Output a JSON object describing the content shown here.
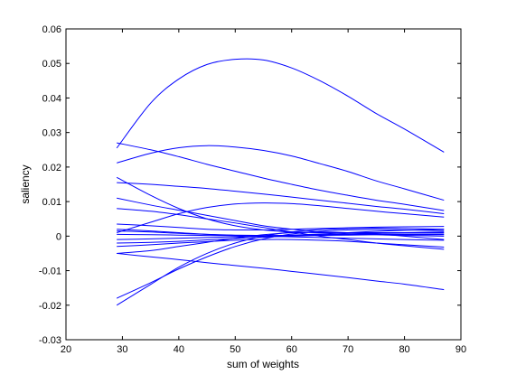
{
  "chart_data": {
    "type": "line",
    "title": "",
    "xlabel": "sum of weights",
    "ylabel": "saliency",
    "xlim": [
      20,
      90
    ],
    "ylim": [
      -0.03,
      0.06
    ],
    "x_ticks": [
      20,
      30,
      40,
      50,
      60,
      70,
      80,
      90
    ],
    "y_ticks": [
      -0.03,
      -0.02,
      -0.01,
      0,
      0.01,
      0.02,
      0.03,
      0.04,
      0.05,
      0.06
    ],
    "y_tick_labels": [
      "-0.03",
      "-0.02",
      "-0.01",
      "0",
      "0.01",
      "0.02",
      "0.03",
      "0.04",
      "0.05",
      "0.06"
    ],
    "grid": false,
    "legend": false,
    "line_color": "#0000ff",
    "x": [
      29,
      35,
      40,
      45,
      50,
      55,
      60,
      65,
      70,
      75,
      80,
      87
    ],
    "series": [
      {
        "values": [
          0.0255,
          0.0385,
          0.0455,
          0.0497,
          0.0512,
          0.051,
          0.0487,
          0.045,
          0.0405,
          0.0355,
          0.031,
          0.0243
        ]
      },
      {
        "values": [
          0.0212,
          0.024,
          0.0256,
          0.0262,
          0.0258,
          0.0248,
          0.0232,
          0.021,
          0.0187,
          0.016,
          0.0137,
          0.0104
        ]
      },
      {
        "values": [
          0.027,
          0.025,
          0.023,
          0.0208,
          0.0188,
          0.0168,
          0.015,
          0.0133,
          0.0118,
          0.0104,
          0.0092,
          0.0074
        ]
      },
      {
        "values": [
          0.0155,
          0.015,
          0.0144,
          0.0138,
          0.013,
          0.0122,
          0.0113,
          0.0104,
          0.0095,
          0.0086,
          0.0078,
          0.0065
        ]
      },
      {
        "values": [
          0.017,
          0.0118,
          0.008,
          0.005,
          0.003,
          0.0018,
          0.0012,
          0.001,
          0.001,
          0.001,
          0.001,
          0.001
        ]
      },
      {
        "values": [
          0.011,
          0.009,
          0.0075,
          0.006,
          0.0045,
          0.003,
          0.002,
          0.0012,
          0.0007,
          0.0004,
          0.0002,
          0.0
        ]
      },
      {
        "values": [
          0.008,
          0.0072,
          0.0062,
          0.005,
          0.0038,
          0.0025,
          0.0012,
          0.0,
          -0.001,
          -0.002,
          -0.0028,
          -0.0038
        ]
      },
      {
        "values": [
          0.001,
          0.004,
          0.0065,
          0.0083,
          0.0093,
          0.0096,
          0.0094,
          0.0088,
          0.008,
          0.0072,
          0.0065,
          0.0055
        ]
      },
      {
        "values": [
          0.0035,
          0.003,
          0.0025,
          0.002,
          0.0018,
          0.0018,
          0.002,
          0.0022,
          0.0024,
          0.0026,
          0.0027,
          0.0028
        ]
      },
      {
        "values": [
          0.002,
          0.0015,
          0.001,
          0.0005,
          0.0002,
          0.0001,
          0.0003,
          0.0006,
          0.001,
          0.0014,
          0.0017,
          0.002
        ]
      },
      {
        "values": [
          0.0015,
          0.0012,
          0.0008,
          0.0005,
          0.0003,
          0.0002,
          0.0002,
          0.0003,
          0.0004,
          0.0005,
          0.0006,
          0.0006
        ]
      },
      {
        "values": [
          0.0005,
          0.0004,
          0.0003,
          0.0002,
          0.0001,
          0.0,
          -0.0002,
          -0.0004,
          -0.0006,
          -0.0008,
          -0.001,
          -0.0012
        ]
      },
      {
        "values": [
          -0.001,
          -0.0008,
          -0.0006,
          -0.0004,
          -0.0002,
          0.0,
          0.0002,
          0.0004,
          0.0006,
          0.0008,
          0.001,
          0.0012
        ]
      },
      {
        "values": [
          -0.002,
          -0.0018,
          -0.0015,
          -0.0011,
          -0.0007,
          -0.0003,
          0.0,
          0.0002,
          0.0003,
          0.0004,
          0.0004,
          0.0004
        ]
      },
      {
        "values": [
          -0.003,
          -0.0025,
          -0.002,
          -0.0016,
          -0.0012,
          -0.001,
          -0.001,
          -0.0012,
          -0.0015,
          -0.002,
          -0.0025,
          -0.0032
        ]
      },
      {
        "values": [
          -0.005,
          -0.0042,
          -0.003,
          -0.0018,
          -0.0006,
          0.0004,
          0.001,
          0.0012,
          0.001,
          0.0006,
          0.0,
          -0.001
        ]
      },
      {
        "values": [
          -0.005,
          -0.006,
          -0.0068,
          -0.0077,
          -0.0085,
          -0.0093,
          -0.0102,
          -0.0111,
          -0.012,
          -0.013,
          -0.0139,
          -0.0155
        ]
      },
      {
        "values": [
          -0.018,
          -0.0135,
          -0.0095,
          -0.006,
          -0.003,
          -0.0008,
          0.0006,
          0.0014,
          0.0018,
          0.0019,
          0.0018,
          0.0016
        ]
      },
      {
        "values": [
          -0.02,
          -0.014,
          -0.009,
          -0.005,
          -0.002,
          0.0,
          0.0012,
          0.0019,
          0.0022,
          0.0023,
          0.0022,
          0.002
        ]
      }
    ]
  }
}
